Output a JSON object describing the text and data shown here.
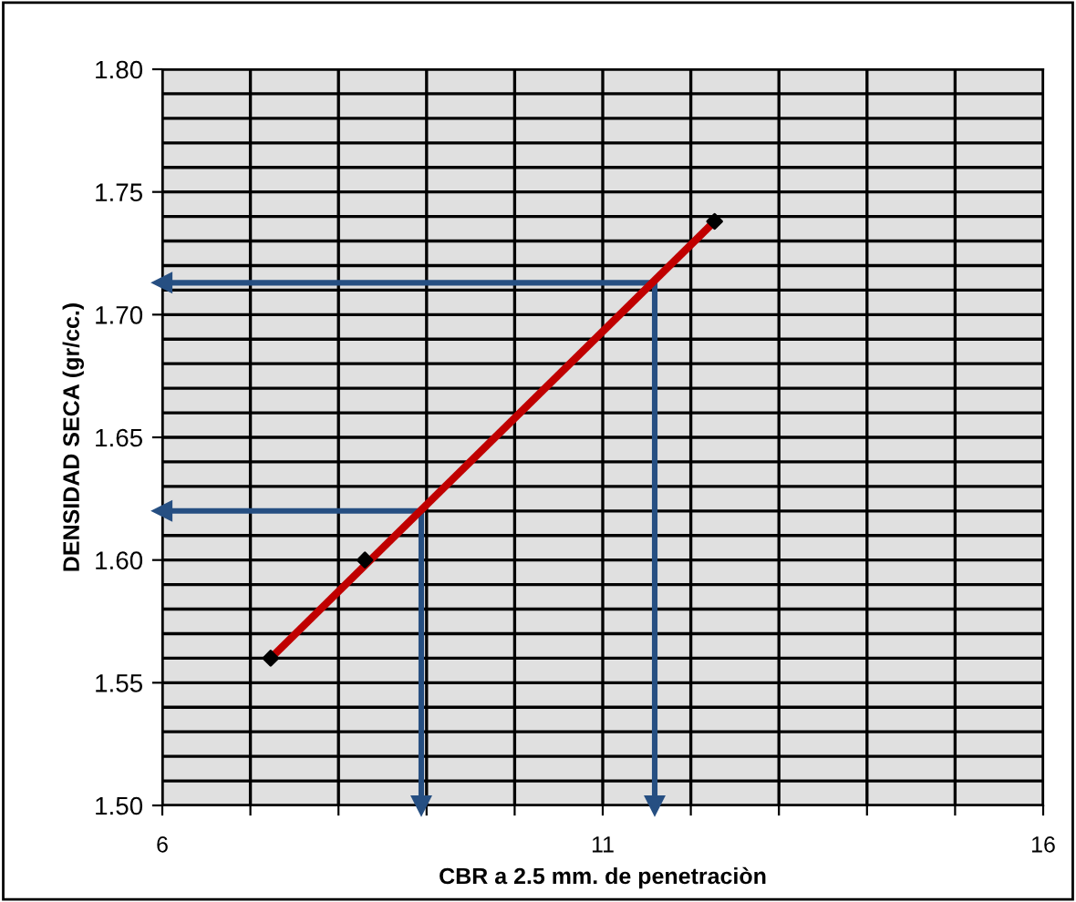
{
  "chart_data": {
    "type": "scatter",
    "xlabel": "CBR a 2.5 mm. de penetraciòn",
    "ylabel": "DENSIDAD SECA (gr/cc.)",
    "xlim": [
      6,
      16
    ],
    "ylim": [
      1.5,
      1.8
    ],
    "xticks": [
      6,
      {
        "value": 7,
        "label": null
      },
      {
        "value": 8,
        "label": null
      },
      {
        "value": 9,
        "label": null
      },
      {
        "value": 10,
        "label": null
      },
      11,
      {
        "value": 12,
        "label": null
      },
      {
        "value": 13,
        "label": null
      },
      {
        "value": 14,
        "label": null
      },
      {
        "value": 15,
        "label": null
      },
      16
    ],
    "yticks": [
      {
        "value": 1.5,
        "label": "1.50"
      },
      {
        "value": 1.55,
        "label": "1.55"
      },
      {
        "value": 1.6,
        "label": "1.60"
      },
      {
        "value": 1.65,
        "label": "1.65"
      },
      {
        "value": 1.7,
        "label": "1.70"
      },
      {
        "value": 1.75,
        "label": "1.75"
      },
      {
        "value": 1.8,
        "label": "1.80"
      }
    ],
    "grid": true,
    "legend": false,
    "series": [
      {
        "type": "line",
        "color": "#c00000",
        "x": [
          7.23,
          12.27
        ],
        "values": [
          1.56,
          1.738
        ],
        "marker": "none"
      },
      {
        "color": "#000000",
        "x": [
          7.23,
          8.3,
          12.27
        ],
        "values": [
          1.56,
          1.6,
          1.738
        ],
        "marker": "diamond"
      },
      {
        "type": "line",
        "color": "#264f82",
        "x": [
          6,
          11.59,
          11.59
        ],
        "values": [
          1.713,
          1.713,
          1.5
        ]
      },
      {
        "type": "line",
        "color": "#264f82",
        "x": [
          6,
          8.94,
          8.94
        ],
        "values": [
          1.62,
          1.62,
          1.5
        ]
      }
    ]
  }
}
